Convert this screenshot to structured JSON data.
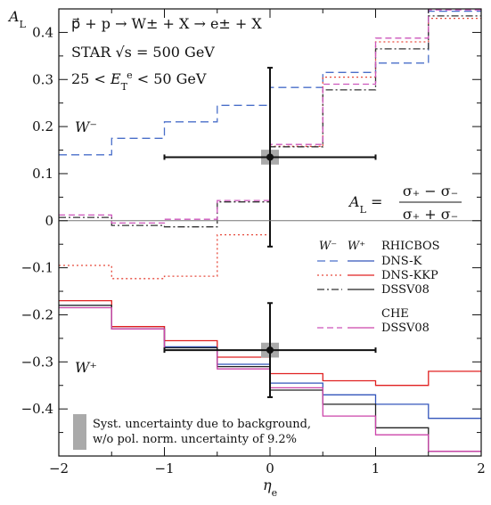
{
  "chart_data": {
    "type": "line",
    "xlabel": "η_e",
    "ylabel": "A_L",
    "xlim": [
      -2,
      2
    ],
    "ylim": [
      -0.5,
      0.45
    ],
    "x_ticks": [
      -2,
      -1,
      0,
      1,
      2
    ],
    "x_tick_labels": [
      "−2",
      "−1",
      "0",
      "1",
      "2"
    ],
    "y_ticks": [
      0.4,
      0.3,
      0.2,
      0.1,
      0,
      -0.1,
      -0.2,
      -0.3,
      -0.4
    ],
    "y_tick_labels": [
      "0.4",
      "0.3",
      "0.2",
      "0.1",
      "0",
      "−0.1",
      "−0.2",
      "−0.3",
      "−0.4"
    ],
    "bin_edges": [
      -2,
      -1.5,
      -1,
      -0.5,
      0,
      0.5,
      1,
      1.5,
      2
    ],
    "annotations": {
      "process": "p⃗ + p → W± + X → e± + X",
      "experiment": "STAR  √s = 500 GeV",
      "cut": "25 < E_T^e < 50 GeV",
      "w_minus_label": "W⁻",
      "w_plus_label": "W⁺",
      "formula_lhs": "A_L =",
      "formula_num": "σ₊ − σ₋",
      "formula_den": "σ₊ + σ₋"
    },
    "legend": {
      "header_wminus": "W⁻",
      "header_wplus": "W⁺",
      "header_rhic": "RHICBOS",
      "entries": [
        "DNS-K",
        "DNS-KKP",
        "DSSV08"
      ],
      "che_header": "CHE",
      "che_entry": "DSSV08",
      "syst_line1": "Syst. uncertainty due to background,",
      "syst_line2": "w/o pol. norm. uncertainty of 9.2%"
    },
    "series": [
      {
        "name": "DNS-K",
        "boson": "W-",
        "color": "#4a6fc9",
        "dash": "9,5",
        "values": [
          0.14,
          0.175,
          0.21,
          0.245,
          0.283,
          0.315,
          0.335,
          0.445
        ]
      },
      {
        "name": "DNS-KKP",
        "boson": "W-",
        "color": "#e64a3c",
        "dash": "2,3",
        "values": [
          -0.095,
          -0.123,
          -0.118,
          -0.03,
          0.158,
          0.305,
          0.38,
          0.43
        ]
      },
      {
        "name": "DSSV08",
        "boson": "W-",
        "color": "#333333",
        "dash": "8,3,2,3",
        "values": [
          0.007,
          -0.01,
          -0.013,
          0.04,
          0.157,
          0.278,
          0.365,
          0.435
        ]
      },
      {
        "name": "CHE DSSV08",
        "boson": "W-",
        "color": "#cc55bb",
        "dash": "7,4",
        "values": [
          0.012,
          -0.005,
          0.003,
          0.043,
          0.162,
          0.29,
          0.388,
          0.448
        ]
      },
      {
        "name": "DNS-K",
        "boson": "W+",
        "color": "#3355bb",
        "dash": "",
        "values": [
          -0.18,
          -0.225,
          -0.268,
          -0.305,
          -0.345,
          -0.37,
          -0.39,
          -0.42
        ]
      },
      {
        "name": "DNS-KKP",
        "boson": "W+",
        "color": "#e02020",
        "dash": "",
        "values": [
          -0.17,
          -0.225,
          -0.255,
          -0.29,
          -0.325,
          -0.34,
          -0.35,
          -0.32
        ]
      },
      {
        "name": "DSSV08",
        "boson": "W+",
        "color": "#222222",
        "dash": "",
        "values": [
          -0.18,
          -0.23,
          -0.27,
          -0.31,
          -0.36,
          -0.39,
          -0.44,
          -0.49
        ]
      },
      {
        "name": "CHE DSSV08",
        "boson": "W+",
        "color": "#cc44aa",
        "dash": "",
        "values": [
          -0.185,
          -0.23,
          -0.275,
          -0.315,
          -0.355,
          -0.415,
          -0.455,
          -0.49
        ]
      }
    ],
    "data_points": [
      {
        "label": "W-",
        "x": 0,
        "y": 0.135,
        "x_err": 1,
        "y_err_up": 0.19,
        "y_err_down": 0.19,
        "syst": 0.012
      },
      {
        "label": "W+",
        "x": 0,
        "y": -0.275,
        "x_err": 1,
        "y_err_up": 0.1,
        "y_err_down": 0.1,
        "syst": 0.012
      }
    ]
  }
}
